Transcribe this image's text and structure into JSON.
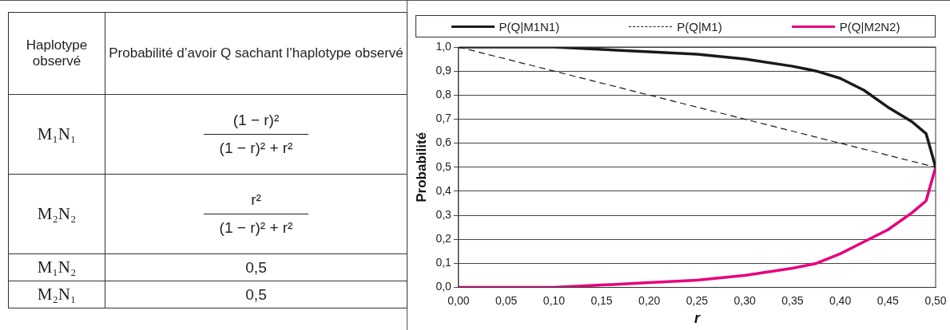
{
  "chart_data": [
    {
      "type": "other",
      "categories": [
        "M₁N₁",
        "M₂N₂",
        "M₁N₂",
        "M₂N₁"
      ],
      "annotations": [
        "Haplotype observé",
        "Probabilité d’avoir Q sachant l’haplotype observé"
      ],
      "cell_labels": [
        [
          "(1 − r)²",
          "(1 − r)² + r²"
        ],
        [
          "r²",
          "(1 − r)² + r²"
        ],
        [
          "0,5"
        ],
        [
          "0,5"
        ]
      ]
    },
    {
      "type": "line",
      "xlabel": "r",
      "ylabel": "Probabilité",
      "legend": "top",
      "grid": "y",
      "marker": "none",
      "xlim": [
        0,
        0.5
      ],
      "ylim": [
        0,
        1
      ],
      "xticks": [
        {
          "value": 0,
          "label": "0,00"
        },
        {
          "value": 0.05,
          "label": "0,05"
        },
        {
          "value": 0.1,
          "label": "0,10"
        },
        {
          "value": 0.15,
          "label": "0,15"
        },
        {
          "value": 0.2,
          "label": "0,20"
        },
        {
          "value": 0.25,
          "label": "0,25"
        },
        {
          "value": 0.3,
          "label": "0,30"
        },
        {
          "value": 0.35,
          "label": "0,35"
        },
        {
          "value": 0.4,
          "label": "0,40"
        },
        {
          "value": 0.45,
          "label": "0,45"
        },
        {
          "value": 0.5,
          "label": "0,50"
        }
      ],
      "yticks": [
        {
          "value": 0,
          "label": "0,0"
        },
        {
          "value": 0.1,
          "label": "0,1"
        },
        {
          "value": 0.2,
          "label": "0,2"
        },
        {
          "value": 0.3,
          "label": "0,3"
        },
        {
          "value": 0.4,
          "label": "0,4"
        },
        {
          "value": 0.5,
          "label": "0,5"
        },
        {
          "value": 0.6,
          "label": "0,6"
        },
        {
          "value": 0.7,
          "label": "0,7"
        },
        {
          "value": 0.8,
          "label": "0,8"
        },
        {
          "value": 0.9,
          "label": "0,9"
        },
        {
          "value": 1,
          "label": "1,0"
        }
      ],
      "series": [
        {
          "name": "P(Q|M1N1)",
          "color": "#1a1a1a",
          "line_style": "solid",
          "x": [
            0,
            0.05,
            0.1,
            0.15,
            0.2,
            0.25,
            0.3,
            0.35,
            0.375,
            0.4,
            0.425,
            0.45,
            0.475,
            0.49,
            0.5
          ],
          "values": [
            1,
            1,
            1,
            0.99,
            0.98,
            0.97,
            0.95,
            0.92,
            0.9,
            0.87,
            0.82,
            0.75,
            0.69,
            0.64,
            0.5
          ]
        },
        {
          "name": "P(Q|M1)",
          "color": "#1a1a1a",
          "line_style": "dashed",
          "x": [
            0,
            0.5
          ],
          "values": [
            1,
            0.5
          ]
        },
        {
          "name": "P(Q|M2N2)",
          "color": "#e6007e",
          "line_style": "solid",
          "x": [
            0,
            0.05,
            0.1,
            0.15,
            0.2,
            0.25,
            0.3,
            0.35,
            0.375,
            0.4,
            0.425,
            0.45,
            0.475,
            0.49,
            0.5
          ],
          "values": [
            0,
            0,
            0,
            0.01,
            0.02,
            0.03,
            0.05,
            0.08,
            0.1,
            0.14,
            0.19,
            0.24,
            0.31,
            0.36,
            0.5
          ]
        }
      ]
    }
  ]
}
